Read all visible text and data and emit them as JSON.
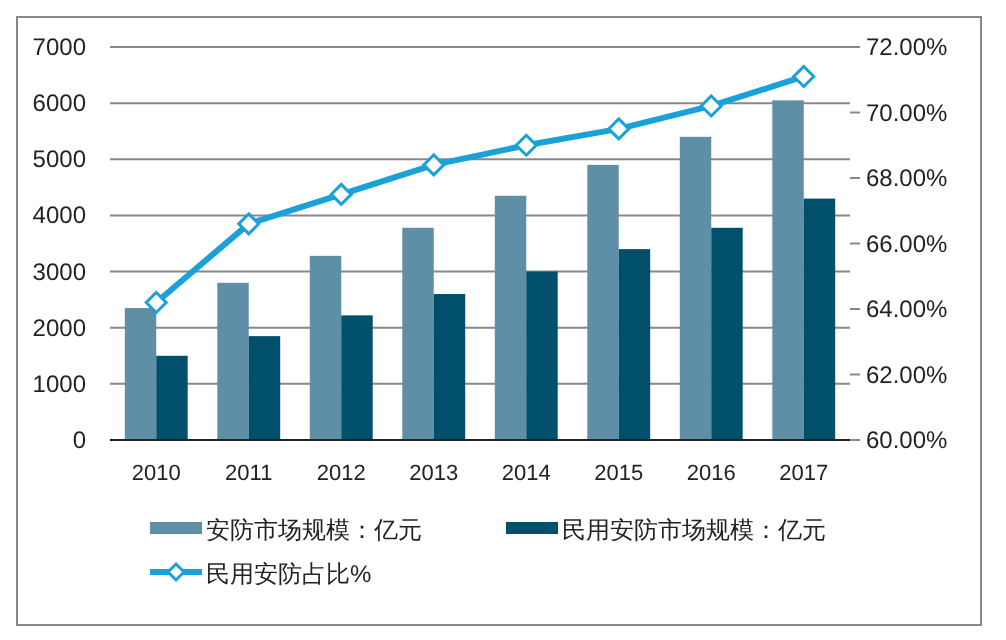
{
  "chart_data": {
    "type": "bar",
    "categories": [
      "2010",
      "2011",
      "2012",
      "2013",
      "2014",
      "2015",
      "2016",
      "2017"
    ],
    "series": [
      {
        "name": "安防市场规模：亿元",
        "color": "#5e8fa7",
        "values": [
          2350,
          2800,
          3280,
          3780,
          4350,
          4900,
          5400,
          6050
        ]
      },
      {
        "name": "民用安防市场规模：亿元",
        "color": "#01506b",
        "values": [
          1500,
          1850,
          2220,
          2600,
          3000,
          3400,
          3780,
          4300
        ]
      },
      {
        "name": "民用安防占比%",
        "type": "line",
        "axis": "y2",
        "color": "#1ba1d9",
        "marker": "diamond",
        "values": [
          64.2,
          66.6,
          67.5,
          68.4,
          69.0,
          69.5,
          70.2,
          71.1
        ]
      }
    ],
    "ylim": [
      0,
      7000
    ],
    "yticks": [
      0,
      1000,
      2000,
      3000,
      4000,
      5000,
      6000,
      7000
    ],
    "y2lim": [
      60,
      72
    ],
    "y2ticks": [
      {
        "value": 60,
        "label": "60.00%"
      },
      {
        "value": 62,
        "label": "62.00%"
      },
      {
        "value": 64,
        "label": "64.00%"
      },
      {
        "value": 66,
        "label": "66.00%"
      },
      {
        "value": 68,
        "label": "68.00%"
      },
      {
        "value": 70,
        "label": "70.00%"
      },
      {
        "value": 72,
        "label": "72.00%"
      }
    ],
    "grid": "y",
    "legend": "bottom"
  }
}
